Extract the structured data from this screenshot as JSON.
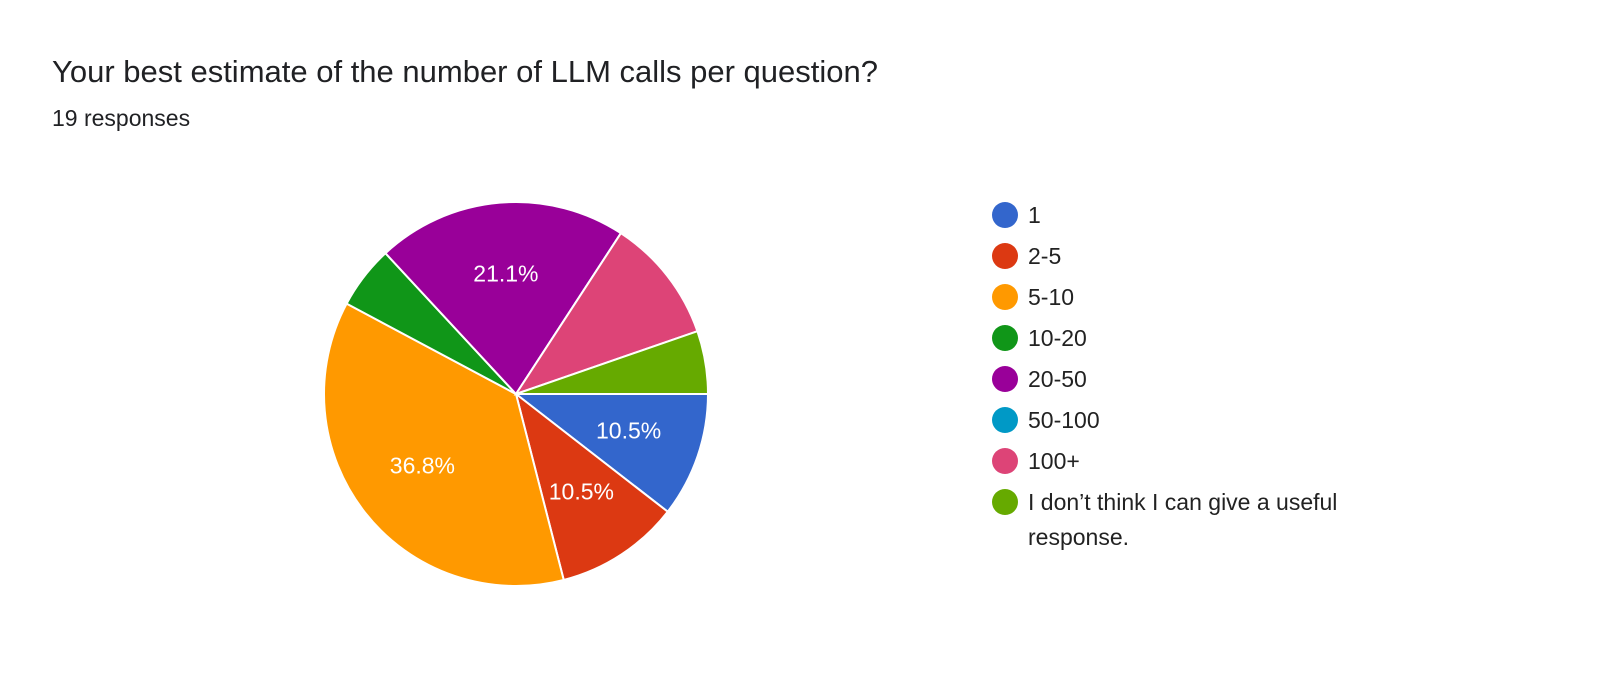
{
  "chart_data": {
    "type": "pie",
    "title": "Your best estimate of the number of LLM calls per question?",
    "subtitle": "19 responses",
    "categories": [
      "1",
      "2-5",
      "5-10",
      "10-20",
      "20-50",
      "50-100",
      "100+",
      "I don’t think I can give a useful response."
    ],
    "values": [
      10.5,
      10.5,
      36.8,
      5.3,
      21.1,
      0,
      10.5,
      5.3
    ],
    "value_labels": [
      "10.5%",
      "10.5%",
      "36.8%",
      null,
      "21.1%",
      null,
      null,
      null
    ],
    "colors": [
      "#3366cc",
      "#dc3912",
      "#ff9900",
      "#109618",
      "#990099",
      "#0099c6",
      "#dd4477",
      "#66aa00"
    ]
  }
}
